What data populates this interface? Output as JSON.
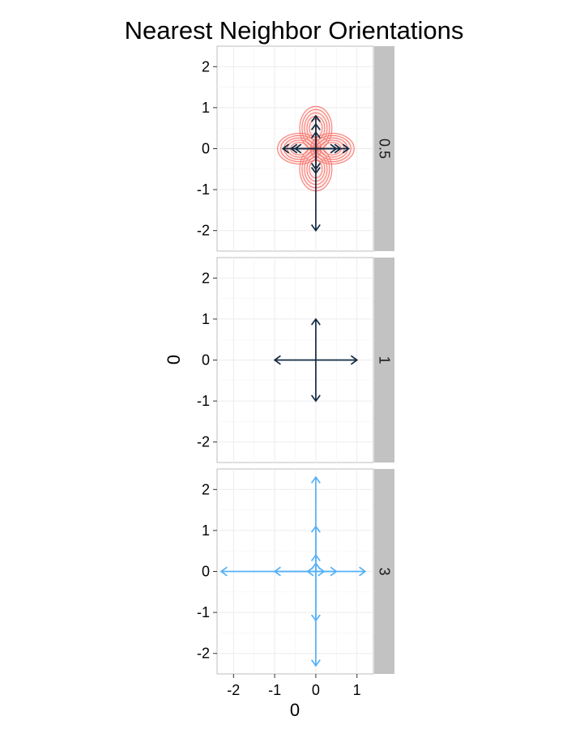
{
  "chart_data": {
    "type": "faceted-vector-plot",
    "title": "Nearest Neighbor Orientations",
    "xlabel": "0",
    "ylabel": "0",
    "xlim": [
      -2.4,
      1.4
    ],
    "ylim": [
      -2.5,
      2.5
    ],
    "x_ticks": [
      -2,
      -1,
      0,
      1
    ],
    "x_tick_labels": [
      "-2",
      "-1",
      "0",
      "1"
    ],
    "y_ticks": [
      -2,
      -1,
      0,
      1,
      2
    ],
    "y_tick_labels": [
      "-2",
      "-1",
      "0",
      "1",
      "2"
    ],
    "grid": true,
    "colors": {
      "dark_arrow": "#132B43",
      "light_arrow": "#56B1F7",
      "density_contour": "#F8766D",
      "strip_fill": "#C2C2C2",
      "panel_grid": "#EBEBEB",
      "panel_border": "#BEBEBE"
    },
    "facets": [
      {
        "label": "0.5",
        "arrow_color": "#132B43",
        "arrows": [
          [
            0.8,
            0
          ],
          [
            0.6,
            0
          ],
          [
            0.5,
            0
          ],
          [
            -0.8,
            0
          ],
          [
            -0.6,
            0
          ],
          [
            -0.5,
            0
          ],
          [
            0,
            0.8
          ],
          [
            0,
            0.6
          ],
          [
            0,
            0.4
          ],
          [
            0,
            -0.6
          ],
          [
            0,
            -0.5
          ],
          [
            0,
            -2
          ]
        ],
        "density_lobes": [
          [
            0.4,
            0
          ],
          [
            -0.4,
            0
          ],
          [
            0,
            0.5
          ],
          [
            0,
            -0.5
          ]
        ]
      },
      {
        "label": "1",
        "arrow_color": "#132B43",
        "arrows": [
          [
            1,
            0
          ],
          [
            -1,
            0
          ],
          [
            0,
            1
          ],
          [
            0,
            -1
          ]
        ],
        "density_lobes": []
      },
      {
        "label": "3",
        "arrow_color": "#56B1F7",
        "arrows": [
          [
            1.2,
            0
          ],
          [
            0.5,
            0
          ],
          [
            0.2,
            0
          ],
          [
            -2.3,
            0
          ],
          [
            -1,
            0
          ],
          [
            -0.2,
            0
          ],
          [
            0,
            2.3
          ],
          [
            0,
            1.1
          ],
          [
            0,
            0.4
          ],
          [
            0,
            0.2
          ],
          [
            0,
            -1.2
          ],
          [
            0,
            -2.3
          ]
        ],
        "density_lobes": []
      }
    ]
  }
}
